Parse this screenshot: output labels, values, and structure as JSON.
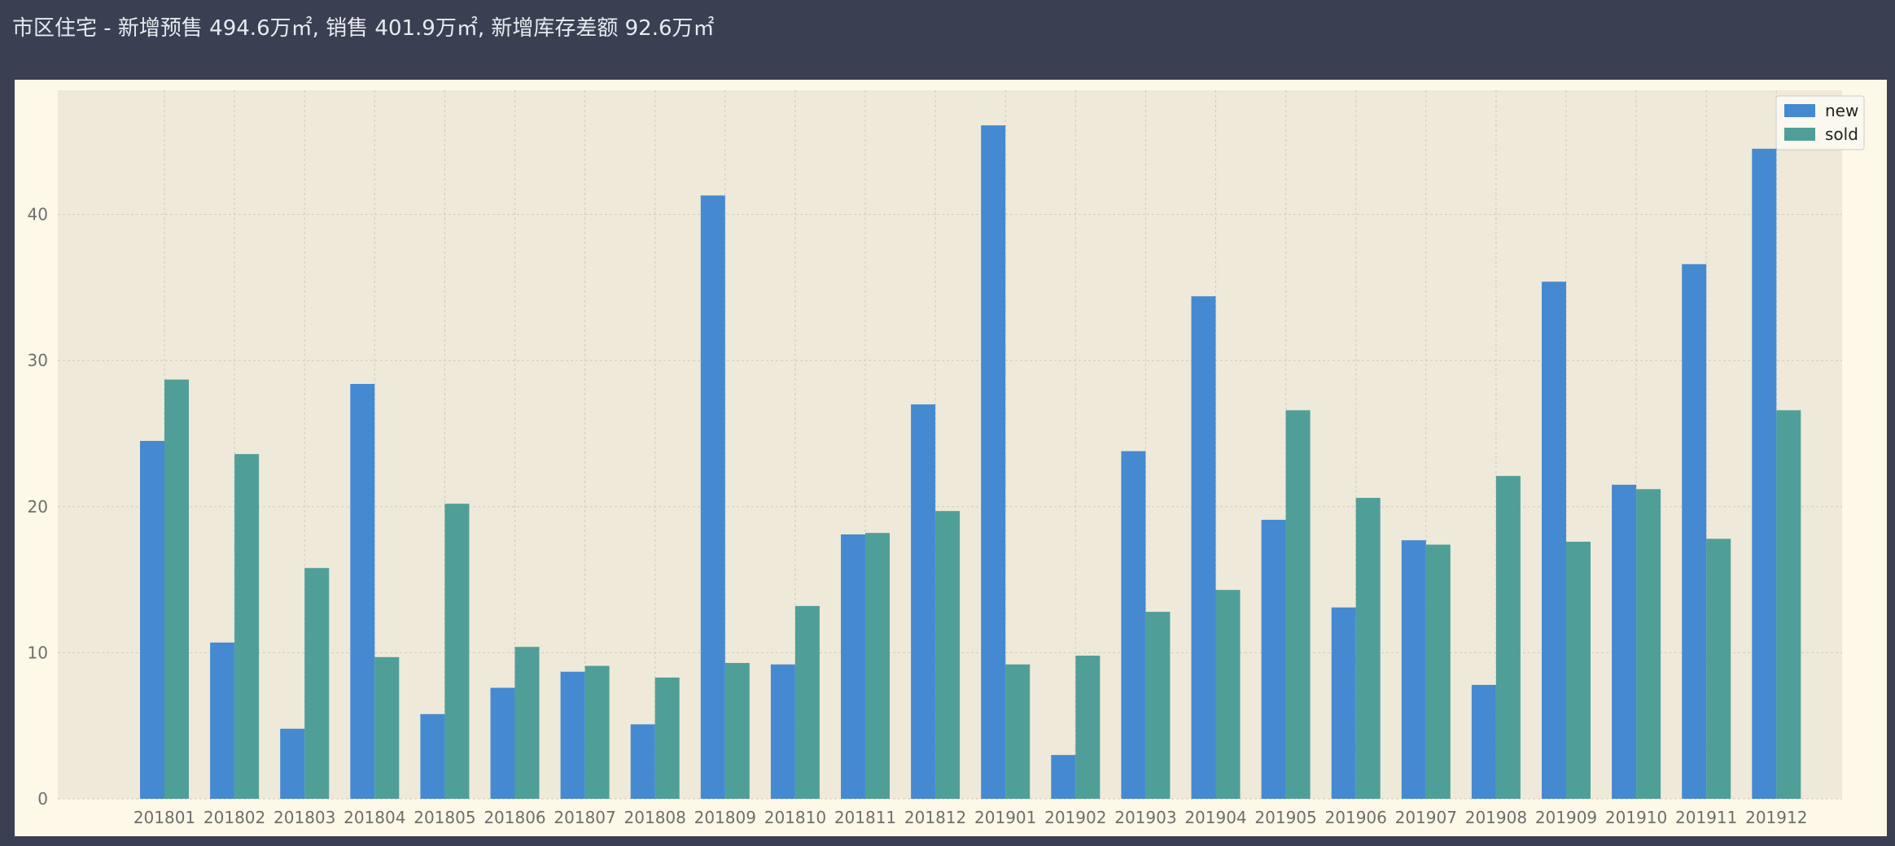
{
  "header": {
    "title": "市区住宅 - 新增预售 494.6万㎡, 销售 401.9万㎡, 新增库存差额 92.6万㎡"
  },
  "colors": {
    "new": "#458ad0",
    "sold": "#4f9f98",
    "plot_bg": "#efe9d9",
    "panel_bg": "#fdf8e8",
    "page_bg": "#3a4052"
  },
  "chart_data": {
    "type": "bar",
    "categories": [
      "201801",
      "201802",
      "201803",
      "201804",
      "201805",
      "201806",
      "201807",
      "201808",
      "201809",
      "201810",
      "201811",
      "201812",
      "201901",
      "201902",
      "201903",
      "201904",
      "201905",
      "201906",
      "201907",
      "201908",
      "201909",
      "201910",
      "201911",
      "201912"
    ],
    "series": [
      {
        "name": "new",
        "values": [
          24.5,
          10.7,
          4.8,
          28.4,
          5.8,
          7.6,
          8.7,
          5.1,
          41.3,
          9.2,
          18.1,
          27.0,
          46.1,
          3.0,
          23.8,
          34.4,
          19.1,
          13.1,
          17.7,
          7.8,
          35.4,
          21.5,
          36.6,
          44.5
        ]
      },
      {
        "name": "sold",
        "values": [
          28.7,
          23.6,
          15.8,
          9.7,
          20.2,
          10.4,
          9.1,
          8.3,
          9.3,
          13.2,
          18.2,
          19.7,
          9.2,
          9.8,
          12.8,
          14.3,
          26.6,
          20.6,
          17.4,
          22.1,
          17.6,
          21.2,
          17.8,
          26.6
        ]
      }
    ],
    "title": "",
    "xlabel": "",
    "ylabel": "",
    "ylim": [
      0,
      48.5
    ],
    "yticks": [
      0,
      10,
      20,
      30,
      40
    ],
    "grid": true,
    "legend": "top-right"
  }
}
